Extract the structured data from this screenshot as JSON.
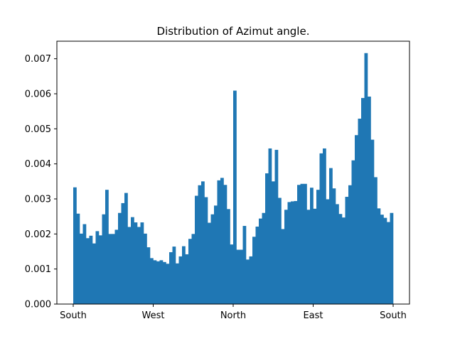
{
  "chart_data": {
    "type": "bar",
    "title": "Distribution of Azimut angle.",
    "xlabel": "",
    "ylabel": "",
    "x_ticks": [
      "South",
      "West",
      "North",
      "East",
      "South"
    ],
    "y_ticks": [
      "0.000",
      "0.001",
      "0.002",
      "0.003",
      "0.004",
      "0.005",
      "0.006",
      "0.007"
    ],
    "ylim": [
      0,
      0.0075
    ],
    "grid": false,
    "legend": "none",
    "bar_color": "#1f77b4",
    "values": [
      0.00333,
      0.00258,
      0.00201,
      0.00228,
      0.00188,
      0.00195,
      0.00173,
      0.00208,
      0.00196,
      0.00256,
      0.00326,
      0.002,
      0.002,
      0.00212,
      0.0026,
      0.00288,
      0.00317,
      0.0022,
      0.00248,
      0.00233,
      0.0022,
      0.00233,
      0.00201,
      0.00162,
      0.00131,
      0.00125,
      0.00122,
      0.00125,
      0.0012,
      0.00115,
      0.00148,
      0.00164,
      0.00116,
      0.00136,
      0.00165,
      0.00142,
      0.00186,
      0.002,
      0.00309,
      0.00339,
      0.0035,
      0.00305,
      0.00232,
      0.00256,
      0.00281,
      0.00353,
      0.0036,
      0.0034,
      0.00271,
      0.0017,
      0.00609,
      0.00155,
      0.00155,
      0.00223,
      0.00127,
      0.00136,
      0.00192,
      0.00221,
      0.00244,
      0.0026,
      0.00373,
      0.00444,
      0.0035,
      0.0044,
      0.00303,
      0.00214,
      0.00269,
      0.00291,
      0.00293,
      0.00294,
      0.0034,
      0.00343,
      0.00343,
      0.00269,
      0.00332,
      0.00272,
      0.00326,
      0.0043,
      0.00444,
      0.00299,
      0.00388,
      0.0033,
      0.00285,
      0.00257,
      0.00247,
      0.00306,
      0.00339,
      0.0041,
      0.00482,
      0.00529,
      0.00588,
      0.00716,
      0.00592,
      0.00469,
      0.00362,
      0.00273,
      0.00255,
      0.00246,
      0.00234,
      0.0026
    ]
  }
}
